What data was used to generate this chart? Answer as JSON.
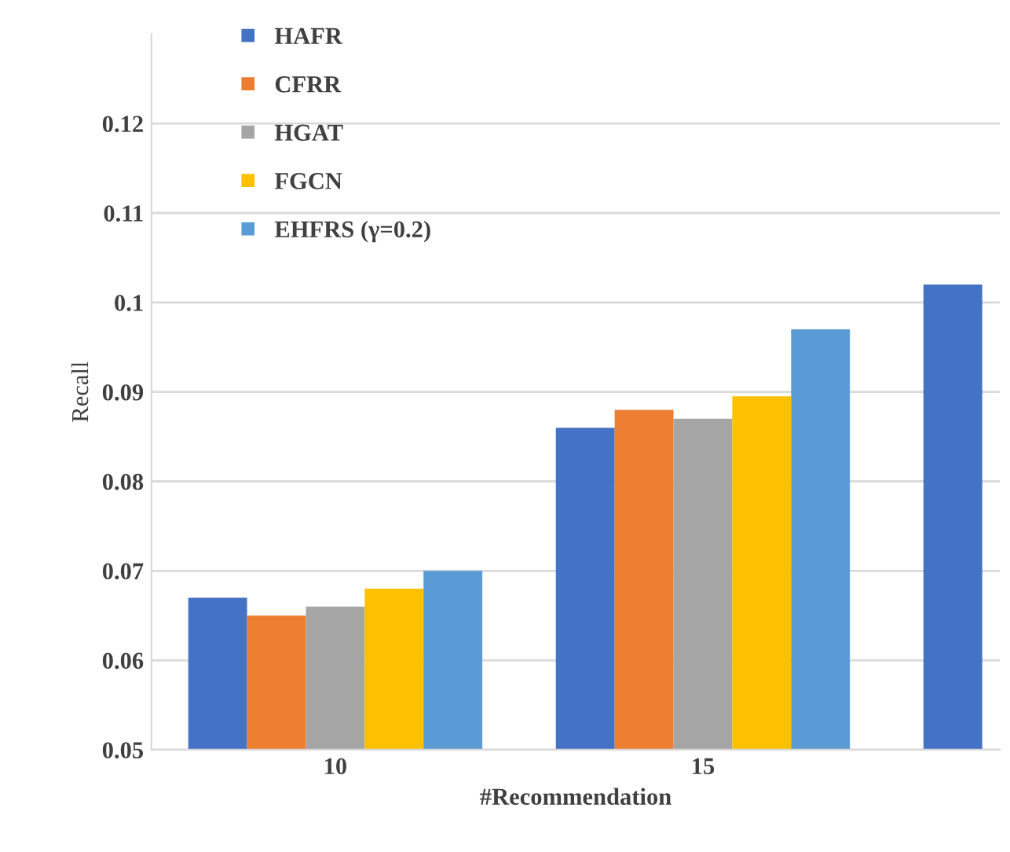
{
  "chart_data": {
    "type": "bar",
    "xlabel": "#Recommendation",
    "ylabel": "Recall",
    "categories": [
      "10",
      "15",
      null
    ],
    "series": [
      {
        "name": "HAFR",
        "color": "#4472c4",
        "values": [
          0.067,
          0.086,
          0.102
        ]
      },
      {
        "name": "CFRR",
        "color": "#ed7d31",
        "values": [
          0.065,
          0.088,
          null
        ]
      },
      {
        "name": "HGAT",
        "color": "#a5a5a5",
        "values": [
          0.066,
          0.087,
          null
        ]
      },
      {
        "name": "FGCN",
        "color": "#ffc000",
        "values": [
          0.068,
          0.0895,
          null
        ]
      },
      {
        "name": "EHFRS (γ=0.2)",
        "color": "#5b9bd5",
        "values": [
          0.07,
          0.097,
          null
        ]
      }
    ],
    "ylim": [
      0.05,
      0.13
    ],
    "yticks": [
      0.05,
      0.06,
      0.07,
      0.08,
      0.09,
      0.1,
      0.11,
      0.12
    ],
    "grid": "y",
    "legend": "top left"
  }
}
